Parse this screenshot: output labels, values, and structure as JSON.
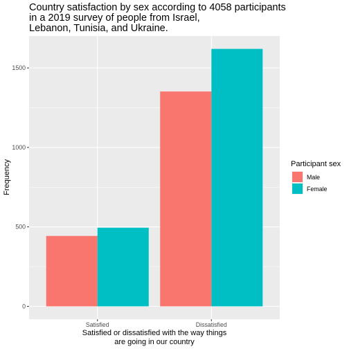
{
  "chart_data": {
    "type": "bar",
    "title_lines": [
      "Country satisfaction by sex according to 4058 participants",
      "in a 2019 survey of people from Israel,",
      "Lebanon, Tunisia, and Ukraine."
    ],
    "xlabel_lines": [
      "Satisfied or dissatisfied with the way things",
      "are going in our country"
    ],
    "ylabel": "Frequency",
    "categories": [
      "Satisfied",
      "Dissatisfied"
    ],
    "series": [
      {
        "name": "Male",
        "color": "#F8766D",
        "values": [
          443,
          1352
        ]
      },
      {
        "name": "Female",
        "color": "#00BFC4",
        "values": [
          495,
          1620
        ]
      }
    ],
    "ylim": [
      -81,
      1701
    ],
    "yticks": [
      0,
      500,
      1000,
      1500
    ],
    "grid": true,
    "legend": {
      "title": "Participant sex",
      "position": "right"
    },
    "colors": {
      "panel_bg": "#EBEBEB",
      "grid": "#FFFFFF"
    }
  }
}
